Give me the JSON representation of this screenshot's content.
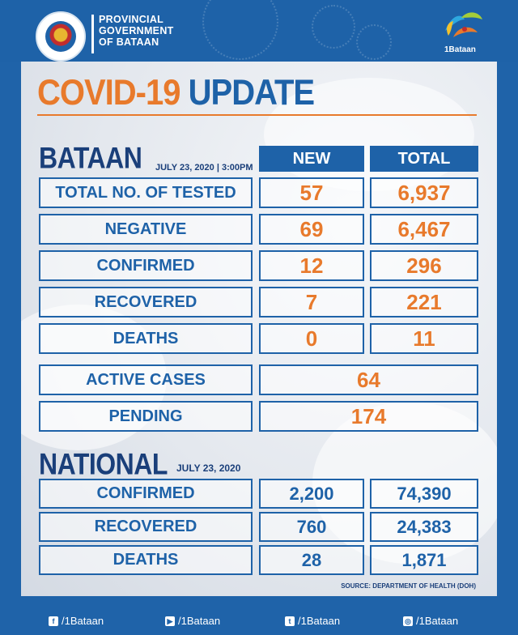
{
  "header": {
    "gov_lines": [
      "PROVINCIAL",
      "GOVERNMENT",
      "OF BATAAN"
    ],
    "brand": "1Bataan"
  },
  "title": {
    "part1": "COVID-19",
    "part2": "UPDATE"
  },
  "bataan": {
    "title": "BATAAN",
    "date": "JULY 23, 2020 | 3:00PM",
    "col_new": "NEW",
    "col_total": "TOTAL",
    "rows": [
      {
        "label": "TOTAL NO. OF TESTED",
        "new": "57",
        "total": "6,937"
      },
      {
        "label": "NEGATIVE",
        "new": "69",
        "total": "6,467"
      },
      {
        "label": "CONFIRMED",
        "new": "12",
        "total": "296"
      },
      {
        "label": "RECOVERED",
        "new": "7",
        "total": "221"
      },
      {
        "label": "DEATHS",
        "new": "0",
        "total": "11"
      }
    ],
    "active": {
      "label": "ACTIVE CASES",
      "value": "64"
    },
    "pending": {
      "label": "PENDING",
      "value": "174"
    }
  },
  "national": {
    "title": "NATIONAL",
    "date": "JULY 23, 2020",
    "rows": [
      {
        "label": "CONFIRMED",
        "new": "2,200",
        "total": "74,390"
      },
      {
        "label": "RECOVERED",
        "new": "760",
        "total": "24,383"
      },
      {
        "label": "DEATHS",
        "new": "28",
        "total": "1,871"
      }
    ],
    "source": "SOURCE: DEPARTMENT OF HEALTH (DOH)"
  },
  "footer": {
    "facebook": "/1Bataan",
    "youtube": "/1Bataan",
    "twitter": "/1Bataan",
    "instagram": "/1Bataan"
  }
}
